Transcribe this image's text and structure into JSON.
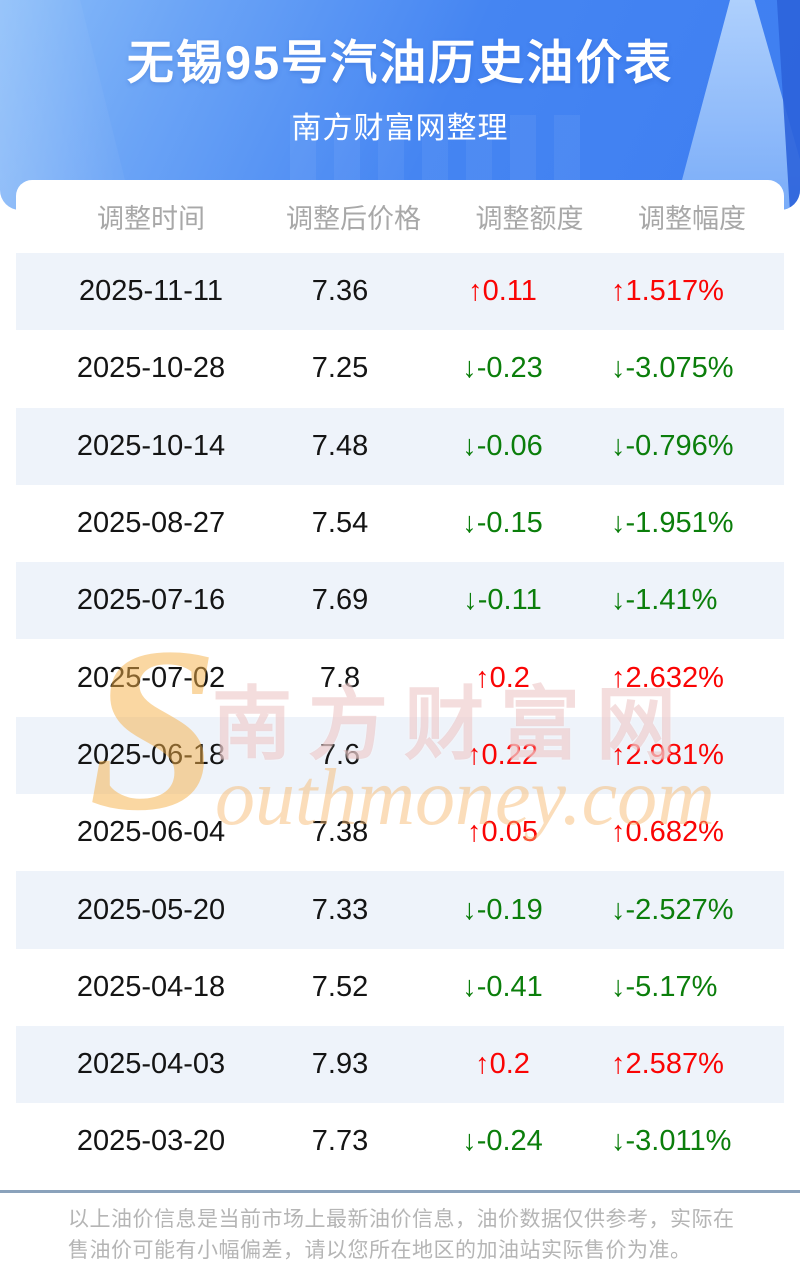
{
  "banner": {
    "title": "无锡95号汽油历史油价表",
    "subtitle": "南方财富网整理"
  },
  "chart_data": {
    "type": "table",
    "title": "无锡95号汽油历史油价表",
    "columns": [
      "调整时间",
      "调整后价格",
      "调整额度",
      "调整幅度"
    ],
    "rows": [
      [
        "2025-11-11",
        "7.36",
        "↑0.11",
        "↑1.517%"
      ],
      [
        "2025-10-28",
        "7.25",
        "↓-0.23",
        "↓-3.075%"
      ],
      [
        "2025-10-14",
        "7.48",
        "↓-0.06",
        "↓-0.796%"
      ],
      [
        "2025-08-27",
        "7.54",
        "↓-0.15",
        "↓-1.951%"
      ],
      [
        "2025-07-16",
        "7.69",
        "↓-0.11",
        "↓-1.41%"
      ],
      [
        "2025-07-02",
        "7.8",
        "↑0.2",
        "↑2.632%"
      ],
      [
        "2025-06-18",
        "7.6",
        "↑0.22",
        "↑2.981%"
      ],
      [
        "2025-06-04",
        "7.38",
        "↑0.05",
        "↑0.682%"
      ],
      [
        "2025-05-20",
        "7.33",
        "↓-0.19",
        "↓-2.527%"
      ],
      [
        "2025-04-18",
        "7.52",
        "↓-0.41",
        "↓-5.17%"
      ],
      [
        "2025-04-03",
        "7.93",
        "↑0.2",
        "↑2.587%"
      ],
      [
        "2025-03-20",
        "7.73",
        "↓-0.24",
        "↓-3.011%"
      ]
    ],
    "directions": [
      "up",
      "down",
      "down",
      "down",
      "down",
      "up",
      "up",
      "up",
      "down",
      "down",
      "up",
      "down"
    ]
  },
  "watermark": {
    "initial": "S",
    "cn": "南方财富网",
    "en": "outhmoney.com"
  },
  "footer": {
    "text": "以上油价信息是当前市场上最新油价信息，油价数据仅供参考，实际在售油价可能有小幅偏差，请以您所在地区的加油站实际售价为准。"
  },
  "colors": {
    "up": "#fa0404",
    "down": "#0b7e0b",
    "banner_light": "#8abdf9",
    "banner_deep": "#3e7ef1",
    "row_alt": "#eef3fa",
    "divider": "#8aa2bb",
    "header_text": "#a8a8a8",
    "footnote_text": "#b5b5b5"
  }
}
